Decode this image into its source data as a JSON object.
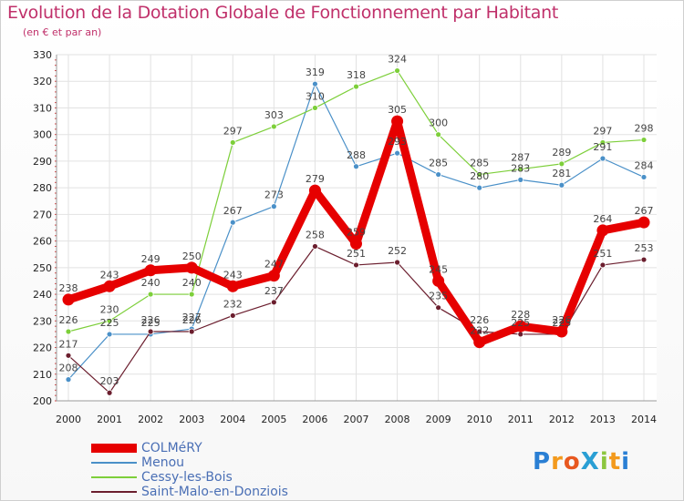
{
  "title": "Evolution de la Dotation Globale de Fonctionnement par Habitant",
  "subtitle": "(en € et par an)",
  "logo": {
    "text": "ProXiti",
    "letters": [
      "P",
      "r",
      "o",
      "X",
      "i",
      "t",
      "i"
    ],
    "colors": [
      "#2a7fd4",
      "#f39a1d",
      "#e8581f",
      "#2a9fd4",
      "#8cc63f",
      "#f39a1d",
      "#2a7fd4"
    ]
  },
  "chart_data": {
    "type": "line",
    "title": "Evolution de la Dotation Globale de Fonctionnement par Habitant",
    "subtitle": "(en € et par an)",
    "xlabel": "",
    "ylabel": "",
    "ylim": [
      200,
      330
    ],
    "yticks": [
      200,
      210,
      220,
      230,
      240,
      250,
      260,
      270,
      280,
      290,
      300,
      310,
      320,
      330
    ],
    "categories": [
      "2000",
      "2001",
      "2002",
      "2003",
      "2004",
      "2005",
      "2006",
      "2007",
      "2008",
      "2009",
      "2010",
      "2011",
      "2012",
      "2013",
      "2014"
    ],
    "series": [
      {
        "name": "COLMéRY",
        "color": "#e60000",
        "highlight": true,
        "values": [
          238,
          243,
          249,
          250,
          243,
          247,
          279,
          259,
          305,
          245,
          222,
          228,
          226,
          264,
          267
        ],
        "labels": [
          "238",
          "243",
          "249",
          "250",
          "243",
          "247",
          "279",
          "259",
          "305",
          "245",
          "222",
          "228",
          "226",
          "264",
          "267"
        ]
      },
      {
        "name": "Menou",
        "color": "#4a90c8",
        "highlight": false,
        "values": [
          208,
          225,
          225,
          227,
          267,
          273,
          319,
          288,
          293,
          285,
          280,
          283,
          281,
          291,
          284
        ],
        "labels": [
          "208",
          "225",
          "225",
          "227",
          "267",
          "273",
          "319",
          "288",
          "293",
          "285",
          "280",
          "283",
          "281",
          "291",
          "284"
        ]
      },
      {
        "name": "Cessy-les-Bois",
        "color": "#7dcf3a",
        "highlight": false,
        "values": [
          226,
          230,
          240,
          240,
          297,
          303,
          310,
          318,
          324,
          300,
          285,
          287,
          289,
          297,
          298
        ],
        "labels": [
          "226",
          "230",
          "240",
          "240",
          "297",
          "303",
          "310",
          "318",
          "324",
          "300",
          "285",
          "287",
          "289",
          "297",
          "298"
        ]
      },
      {
        "name": "Saint-Malo-en-Donziois",
        "color": "#6b1e2e",
        "highlight": false,
        "values": [
          217,
          203,
          226,
          226,
          232,
          237,
          258,
          251,
          252,
          235,
          226,
          225,
          225,
          251,
          253
        ],
        "labels": [
          "217",
          "203",
          "226",
          "226",
          "232",
          "237",
          "258",
          "251",
          "252",
          "235",
          "226",
          "225",
          "225",
          "251",
          "253"
        ]
      }
    ],
    "grid": true,
    "legend_position": "bottom-left"
  }
}
